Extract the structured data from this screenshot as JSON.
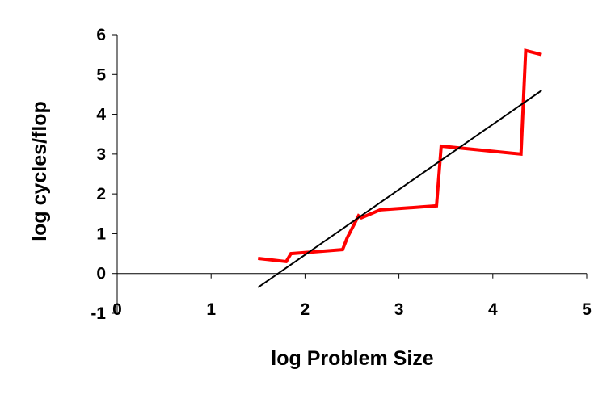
{
  "chart_data": {
    "type": "line",
    "xlabel": "log Problem Size",
    "ylabel": "log cycles/flop",
    "xlim": [
      0,
      5
    ],
    "ylim": [
      -1,
      6
    ],
    "x_ticks": [
      0,
      1,
      2,
      3,
      4,
      5
    ],
    "y_ticks": [
      -1,
      0,
      1,
      2,
      3,
      4,
      5,
      6
    ],
    "grid": false,
    "series": [
      {
        "color": "#ff0000",
        "style": "data",
        "x": [
          1.5,
          1.8,
          1.85,
          2.4,
          2.45,
          2.57,
          2.6,
          2.8,
          3.4,
          3.45,
          4.3,
          4.35,
          4.52
        ],
        "y": [
          0.38,
          0.3,
          0.5,
          0.6,
          0.9,
          1.45,
          1.4,
          1.6,
          1.7,
          3.2,
          3.0,
          5.6,
          5.5
        ]
      },
      {
        "color": "#000000",
        "style": "trend",
        "x": [
          1.5,
          4.52
        ],
        "y": [
          -0.35,
          4.6
        ]
      }
    ]
  }
}
